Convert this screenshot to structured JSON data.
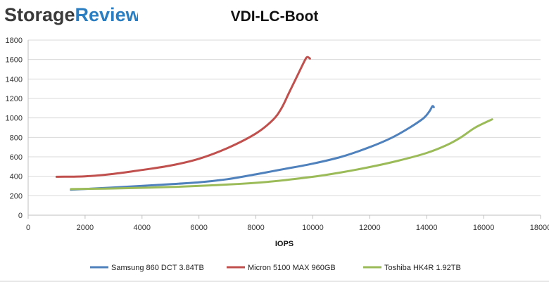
{
  "brand": {
    "name_a": "Storage",
    "name_b": "Review"
  },
  "colors": {
    "brand_dark": "#3a3a3a",
    "brand_blue": "#2a7dc0",
    "gridline": "#d9d9d9",
    "axis": "#bfbfbf"
  },
  "chart_data": {
    "type": "line",
    "title": "VDI-LC-Boot",
    "xlabel": "IOPS",
    "ylabel": "",
    "xlim": [
      0,
      18000
    ],
    "ylim": [
      0,
      1800
    ],
    "x_ticks": [
      0,
      2000,
      4000,
      6000,
      8000,
      10000,
      12000,
      14000,
      16000,
      18000
    ],
    "y_ticks": [
      0,
      200,
      400,
      600,
      800,
      1000,
      1200,
      1400,
      1600,
      1800
    ],
    "grid": true,
    "legend_position": "bottom",
    "series": [
      {
        "name": "Samsung 860 DCT 3.84TB",
        "color": "#4f81bd",
        "points": [
          [
            1500,
            262
          ],
          [
            3000,
            285
          ],
          [
            4500,
            310
          ],
          [
            6000,
            338
          ],
          [
            7000,
            370
          ],
          [
            8000,
            420
          ],
          [
            9000,
            475
          ],
          [
            10000,
            530
          ],
          [
            11000,
            600
          ],
          [
            12000,
            700
          ],
          [
            12800,
            800
          ],
          [
            13400,
            900
          ],
          [
            13900,
            1000
          ],
          [
            14100,
            1070
          ],
          [
            14200,
            1120
          ],
          [
            14250,
            1110
          ]
        ]
      },
      {
        "name": "Micron 5100 MAX 960GB",
        "color": "#c0504d",
        "points": [
          [
            1000,
            395
          ],
          [
            2000,
            400
          ],
          [
            3000,
            425
          ],
          [
            4000,
            465
          ],
          [
            5000,
            510
          ],
          [
            6000,
            580
          ],
          [
            7000,
            690
          ],
          [
            8000,
            840
          ],
          [
            8600,
            980
          ],
          [
            8900,
            1100
          ],
          [
            9150,
            1250
          ],
          [
            9400,
            1400
          ],
          [
            9700,
            1580
          ],
          [
            9800,
            1625
          ],
          [
            9900,
            1610
          ]
        ]
      },
      {
        "name": "Toshiba HK4R 1.92TB",
        "color": "#9bbb59",
        "points": [
          [
            1500,
            268
          ],
          [
            3000,
            275
          ],
          [
            5000,
            290
          ],
          [
            7000,
            315
          ],
          [
            8500,
            345
          ],
          [
            10000,
            395
          ],
          [
            11000,
            440
          ],
          [
            12000,
            495
          ],
          [
            13000,
            560
          ],
          [
            14000,
            640
          ],
          [
            14700,
            720
          ],
          [
            15200,
            800
          ],
          [
            15700,
            900
          ],
          [
            16300,
            985
          ]
        ]
      }
    ]
  }
}
